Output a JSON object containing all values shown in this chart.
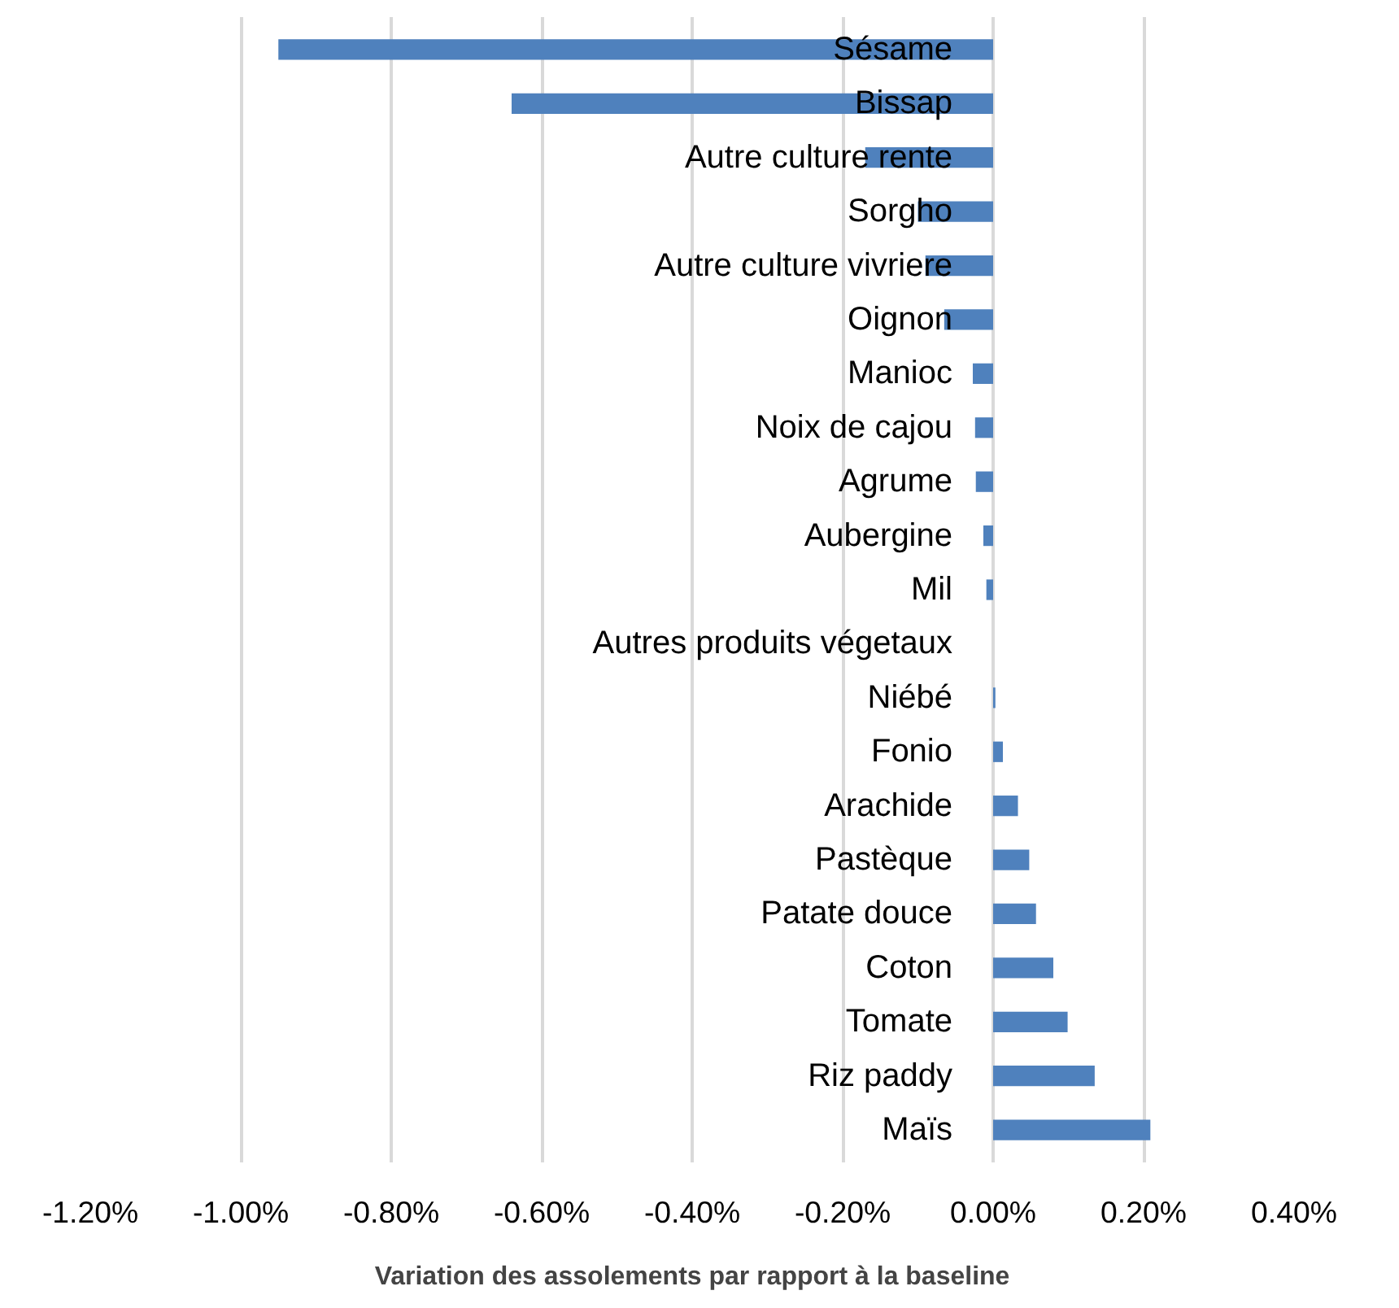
{
  "chart_data": {
    "type": "bar",
    "orientation": "horizontal",
    "xlabel": "Variation des assolements par rapport à la baseline",
    "categories": [
      "Sésame",
      "Bissap",
      "Autre culture rente",
      "Sorgho",
      "Autre culture vivriere",
      "Oignon",
      "Manioc",
      "Noix de cajou",
      "Agrume",
      "Aubergine",
      "Mil",
      "Autres produits végetaux",
      "Niébé",
      "Fonio",
      "Arachide",
      "Pastèque",
      "Patate douce",
      "Coton",
      "Tomate",
      "Riz paddy",
      "Maïs"
    ],
    "values": [
      -0.95,
      -0.64,
      -0.17,
      -0.1,
      -0.09,
      -0.065,
      -0.027,
      -0.024,
      -0.023,
      -0.013,
      -0.009,
      0,
      0.003,
      0.013,
      0.033,
      0.048,
      0.057,
      0.08,
      0.099,
      0.135,
      0.209
    ],
    "color": "#4f81bd",
    "xlim": [
      -1.2,
      0.4
    ],
    "xticks": [
      {
        "value": -1.2,
        "label": "-1.20%"
      },
      {
        "value": -1.0,
        "label": "-1.00%"
      },
      {
        "value": -0.8,
        "label": "-0.80%"
      },
      {
        "value": -0.6,
        "label": "-0.60%"
      },
      {
        "value": -0.4,
        "label": "-0.40%"
      },
      {
        "value": -0.2,
        "label": "-0.20%"
      },
      {
        "value": 0,
        "label": "0.00%"
      },
      {
        "value": 0.2,
        "label": "0.20%"
      },
      {
        "value": 0.4,
        "label": "0.40%"
      }
    ],
    "grid": "x"
  }
}
